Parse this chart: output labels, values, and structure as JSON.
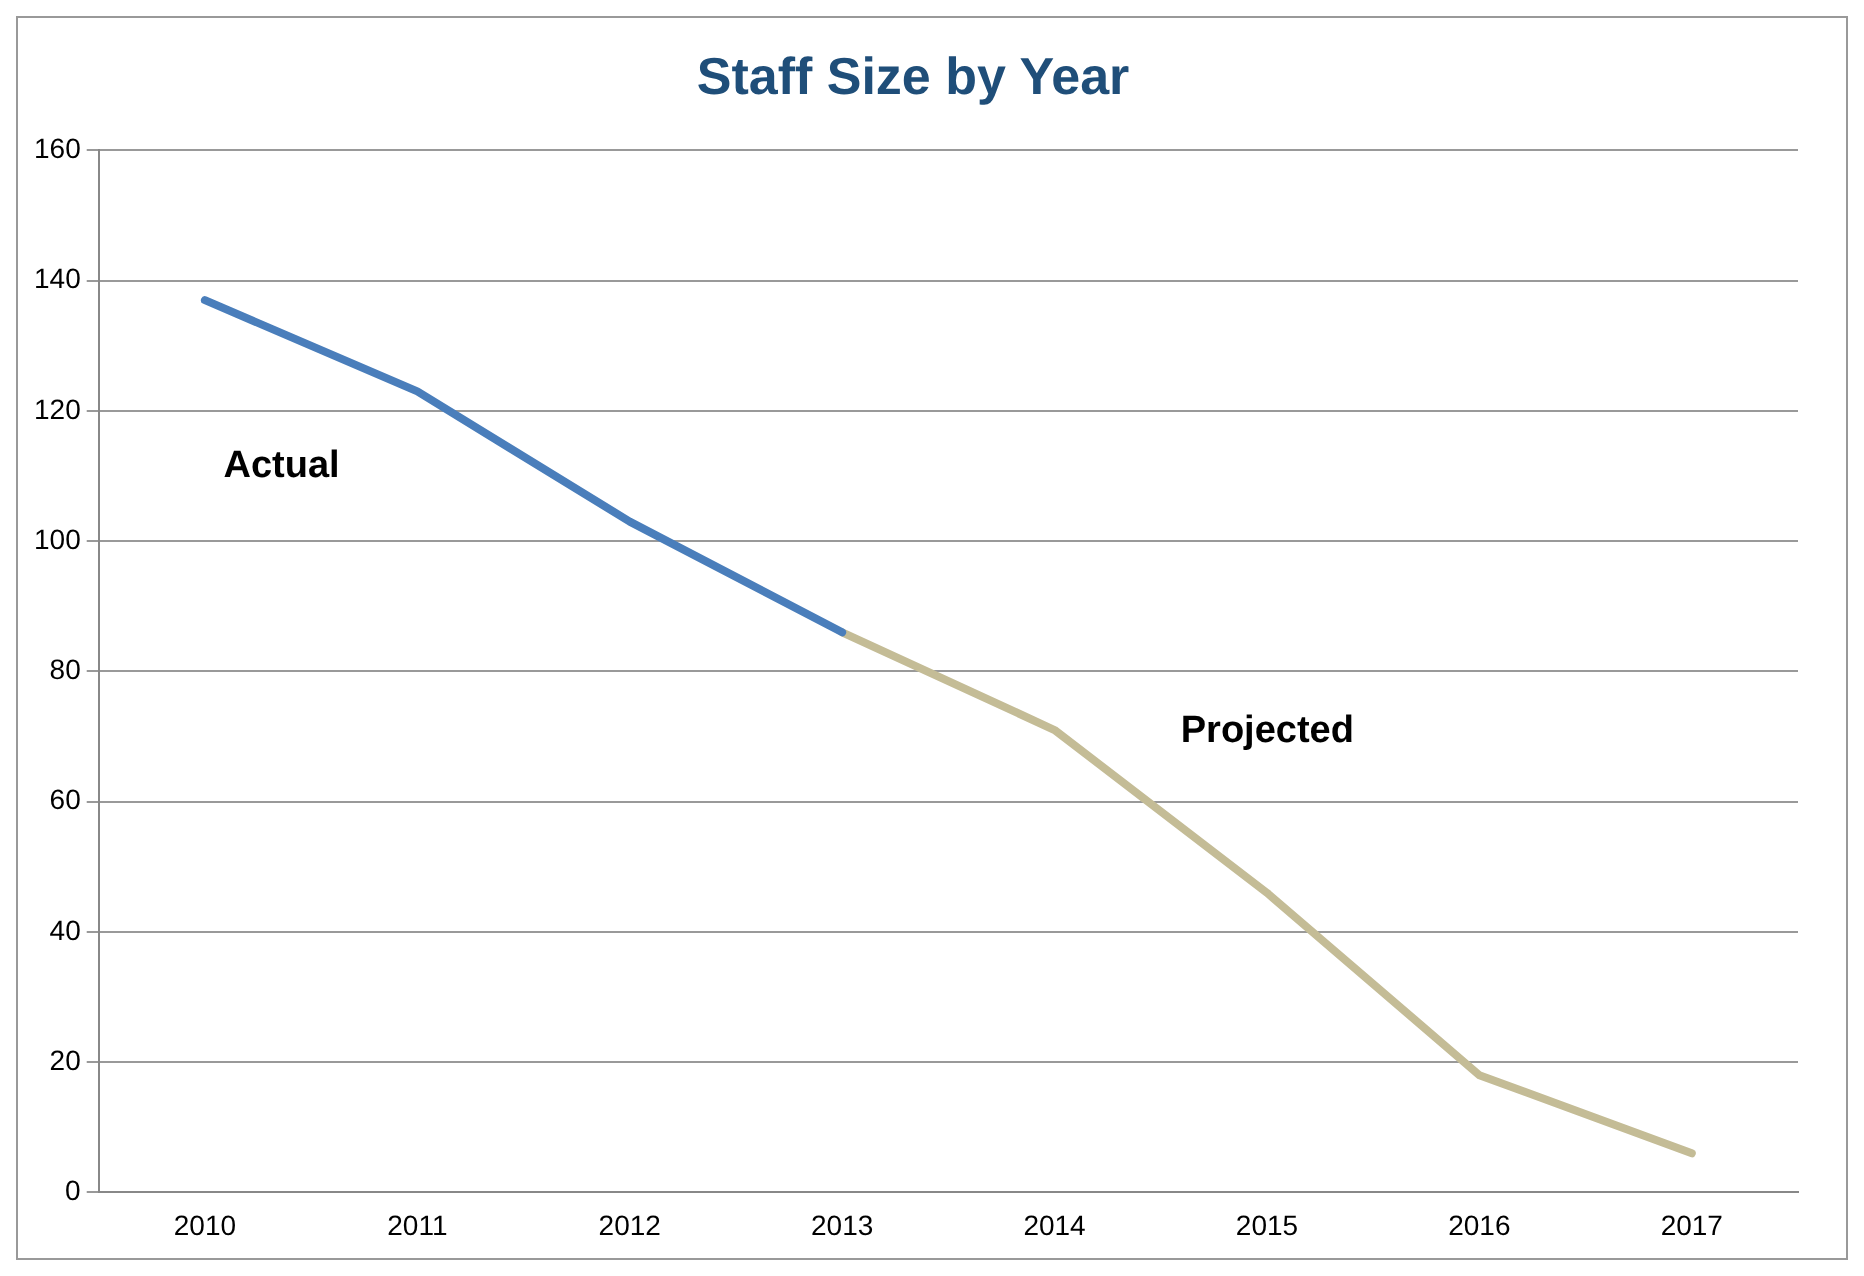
{
  "chart_data": {
    "type": "line",
    "title": "Staff Size by Year",
    "categories": [
      "2010",
      "2011",
      "2012",
      "2013",
      "2014",
      "2015",
      "2016",
      "2017"
    ],
    "series": [
      {
        "name": "Actual",
        "color": "#4a7ebb",
        "values": [
          137,
          123,
          103,
          86,
          null,
          null,
          null,
          null
        ]
      },
      {
        "name": "Projected",
        "color": "#c4bc96",
        "values": [
          null,
          null,
          null,
          86,
          71,
          46,
          18,
          6
        ]
      }
    ],
    "ylim": [
      0,
      160
    ],
    "yticks": [
      0,
      20,
      40,
      60,
      80,
      100,
      120,
      140,
      160
    ],
    "grid": "y",
    "legend": false,
    "marker": "none",
    "line_style": "solid"
  }
}
